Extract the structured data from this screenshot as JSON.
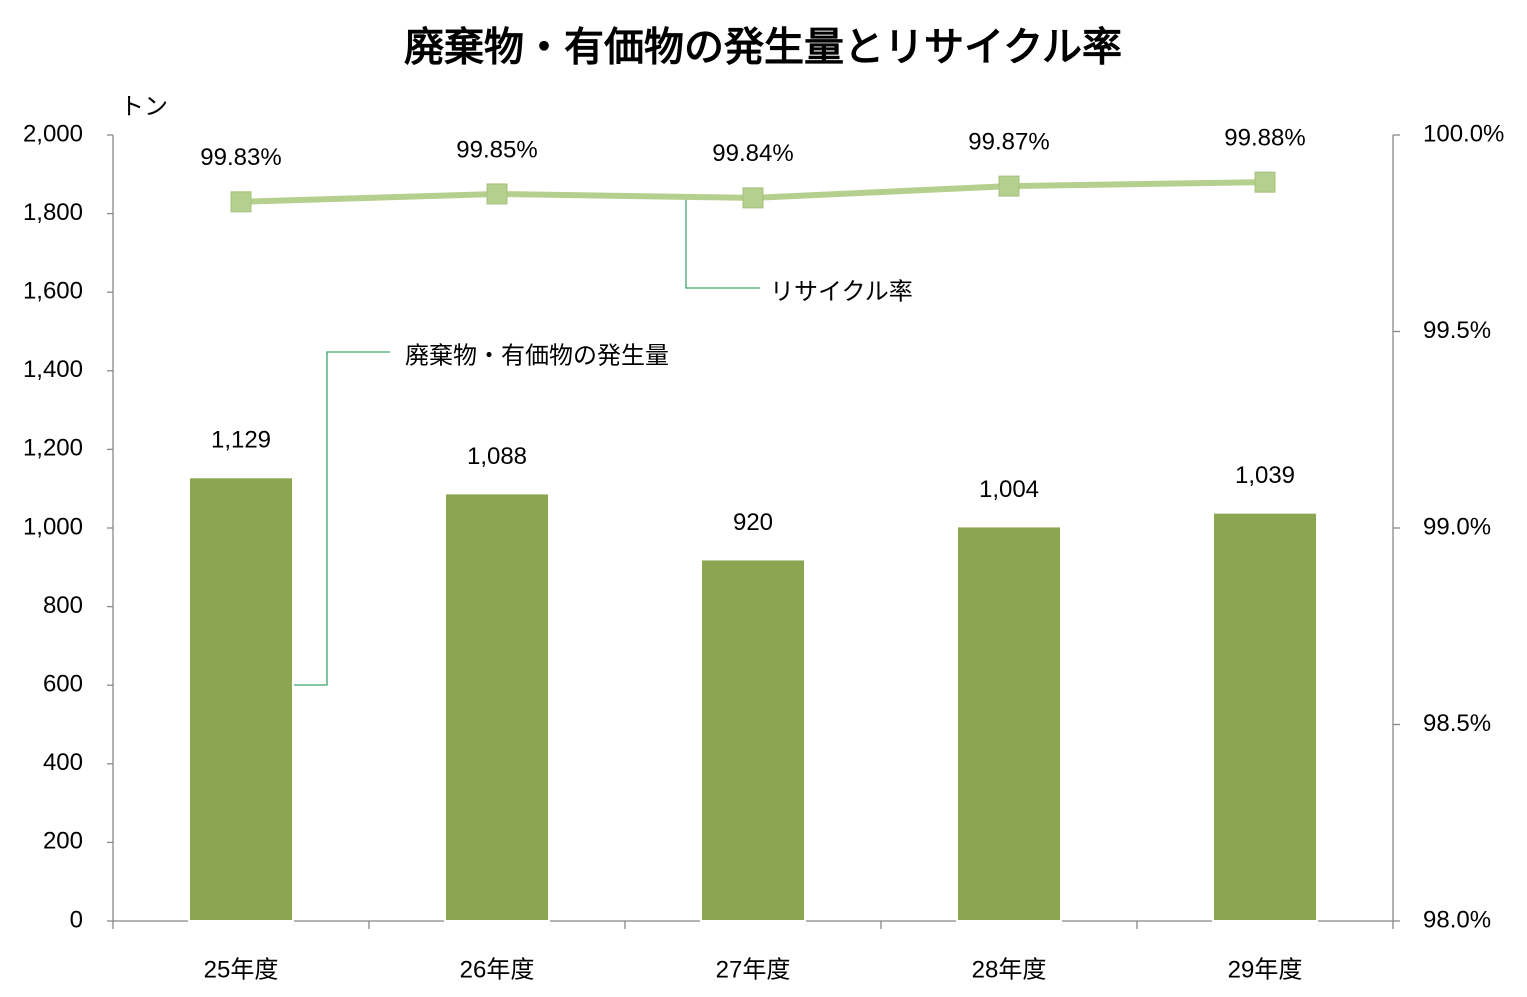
{
  "chart_data": {
    "type": "combo",
    "title": "廃棄物・有価物の発生量とリサイクル率",
    "y_label": "トン",
    "categories": [
      "25年度",
      "26年度",
      "27年度",
      "28年度",
      "29年度"
    ],
    "series": [
      {
        "name": "廃棄物・有価物の発生量",
        "type": "bar",
        "color": "#8ba650",
        "values": [
          1129,
          1088,
          920,
          1004,
          1039
        ],
        "value_labels": [
          "1,129",
          "1,088",
          "920",
          "1,004",
          "1,039"
        ]
      },
      {
        "name": "リサイクル率",
        "type": "line",
        "axis": "y2",
        "color": "#b5cf8e",
        "values": [
          99.83,
          99.85,
          99.84,
          99.87,
          99.88
        ],
        "value_labels": [
          "99.83%",
          "99.85%",
          "99.84%",
          "99.87%",
          "99.88%"
        ]
      }
    ],
    "ylim": [
      0,
      2000
    ],
    "yticks": [
      0,
      200,
      400,
      600,
      800,
      {
        "value": 1000,
        "label": "1,000"
      },
      {
        "value": 1200,
        "label": "1,200"
      },
      {
        "value": 1400,
        "label": "1,400"
      },
      {
        "value": 1600,
        "label": "1,600"
      },
      {
        "value": 1800,
        "label": "1,800"
      },
      {
        "value": 2000,
        "label": "2,000"
      }
    ],
    "y2lim": [
      98,
      100
    ],
    "y2ticks": [
      {
        "value": 98,
        "label": "98.0%"
      },
      {
        "value": 98.5,
        "label": "98.5%"
      },
      {
        "value": 99,
        "label": "99.0%"
      },
      {
        "value": 99.5,
        "label": "99.5%"
      },
      {
        "value": 100,
        "label": "100.0%"
      }
    ]
  }
}
